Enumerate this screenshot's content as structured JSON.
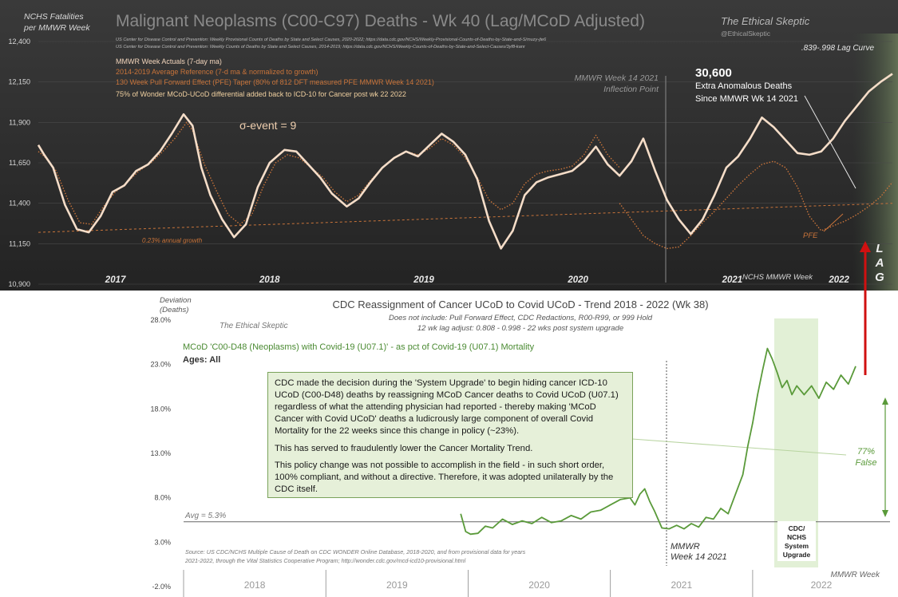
{
  "chart_data": [
    {
      "type": "line",
      "title": "Malignant Neoplasms (C00-C97) Deaths - Wk 40 (Lag/MCoD Adjusted)",
      "ylabel": "NCHS Fatalities per MMWR Week",
      "ylabel_line1": "NCHS Fatalities",
      "ylabel_line2": "per MMWR Week",
      "xlabel": "NCHS MMWR Week",
      "ylim": [
        10900,
        12400
      ],
      "yticks": [
        "12,400",
        "12,150",
        "11,900",
        "11,650",
        "11,400",
        "11,150",
        "10,900"
      ],
      "ytick_values": [
        12400,
        12150,
        11900,
        11650,
        11400,
        11150,
        10900
      ],
      "year_labels": [
        "2017",
        "2018",
        "2019",
        "2020",
        "2021",
        "2022"
      ],
      "source_lines": [
        "US Center for Disease Control and Prevention: Weekly Provisional Counts of Deaths by State and Select Causes, 2020-2022; https://data.cdc.gov/NCHS/Weekly-Provisional-Counts-of-Deaths-by-State-and-S/muzy-jte6",
        "US Center for Disease Control and Prevention: Weekly Counts of Deaths by State and Select Causes, 2014-2019; https://data.cdc.gov/NCHS/Weekly-Counts-of-Deaths-by-State-and-Select-Causes/3yf8-kanr"
      ],
      "legend": [
        {
          "text": "MMWR Week Actuals (7-day ma)",
          "color": "#f3d6bd"
        },
        {
          "text": "2014-2019 Average Reference  (7-d ma & normalized to growth)",
          "color": "#c9743a"
        },
        {
          "text": "130 Week Pull Forward Effect (PFE) Taper (80% of 812 DFT measured PFE MMWR Week 14 2021)",
          "color": "#c9743a"
        },
        {
          "text": "75% of Wonder MCoD-UCoD  differential added back to ICD-10 for Cancer post wk 22 2022",
          "color": "#f0d0a0"
        }
      ],
      "sigma_label": "σ-event = 9",
      "growth_label": "0.23% annual growth",
      "inflection_label_1": "MMWR Week 14 2021",
      "inflection_label_2": "Inflection Point",
      "excess_value": "30,600",
      "excess_line1": "Extra Anomalous Deaths",
      "excess_line2": "Since MMWR Wk 14 2021",
      "lag_curve_label": ".839-.998  Lag Curve",
      "lag_letters": [
        "L",
        "A",
        "G"
      ],
      "pfe_label": "PFE",
      "brand": "The Ethical Skeptic",
      "brand_handle": "@EthicalSkeptic",
      "series": [
        {
          "name": "MMWR Week Actuals (7-day ma)",
          "color": "#f5ddc8",
          "x": [
            0,
            2,
            5,
            9,
            13,
            17,
            21,
            25,
            29,
            33,
            37,
            41,
            45,
            49,
            52,
            55,
            58,
            62,
            66,
            70,
            74,
            78,
            83,
            87,
            91,
            95,
            99,
            104,
            108,
            112,
            116,
            120,
            124,
            128,
            132,
            136,
            140,
            144,
            148,
            152,
            156,
            160,
            164,
            168,
            172,
            176,
            180,
            184,
            188,
            192,
            196,
            200,
            204,
            208,
            212,
            216,
            220,
            224,
            228,
            232,
            236,
            240,
            244,
            248,
            252,
            256,
            260,
            264,
            268,
            272,
            276,
            280,
            284,
            288
          ],
          "values": [
            11760,
            11700,
            11620,
            11390,
            11240,
            11220,
            11320,
            11470,
            11510,
            11600,
            11640,
            11720,
            11830,
            11950,
            11880,
            11620,
            11450,
            11300,
            11190,
            11270,
            11500,
            11650,
            11730,
            11720,
            11640,
            11560,
            11460,
            11380,
            11430,
            11530,
            11620,
            11680,
            11720,
            11690,
            11760,
            11830,
            11780,
            11700,
            11550,
            11290,
            11120,
            11230,
            11450,
            11530,
            11560,
            11580,
            11600,
            11660,
            11750,
            11640,
            11570,
            11660,
            11800,
            11600,
            11420,
            11300,
            11210,
            11300,
            11450,
            11620,
            11690,
            11800,
            11930,
            11870,
            11790,
            11710,
            11700,
            11720,
            11800,
            11910,
            12000,
            12090,
            12150,
            12200
          ]
        },
        {
          "name": "2014-2019 Average Reference",
          "color": "#c9743a",
          "x": [
            0,
            2,
            6,
            10,
            14,
            18,
            22,
            26,
            30,
            34,
            38,
            42,
            46,
            50,
            52,
            56,
            60,
            64,
            68,
            72,
            76,
            80,
            84,
            88,
            92,
            96,
            100,
            104,
            108,
            112,
            116,
            120,
            124,
            128,
            132,
            136,
            140,
            144,
            148,
            152,
            156,
            160,
            164,
            168,
            172,
            176,
            180,
            184,
            188,
            192,
            196
          ],
          "values": [
            11720,
            11690,
            11600,
            11420,
            11280,
            11270,
            11380,
            11470,
            11530,
            11600,
            11650,
            11720,
            11800,
            11900,
            11850,
            11640,
            11480,
            11330,
            11270,
            11330,
            11510,
            11650,
            11700,
            11680,
            11620,
            11560,
            11470,
            11410,
            11450,
            11540,
            11620,
            11680,
            11720,
            11700,
            11740,
            11800,
            11760,
            11680,
            11560,
            11420,
            11360,
            11400,
            11520,
            11580,
            11600,
            11610,
            11630,
            11700,
            11820,
            11700,
            11620
          ]
        },
        {
          "name": "PFE",
          "color": "#c9743a",
          "x": [
            196,
            200,
            204,
            208,
            212,
            216,
            220,
            224,
            228,
            232,
            236,
            240,
            244,
            248,
            252,
            256,
            260,
            264,
            268,
            272,
            276,
            280,
            284,
            288
          ],
          "values": [
            11400,
            11300,
            11200,
            11150,
            11120,
            11130,
            11200,
            11280,
            11350,
            11430,
            11510,
            11580,
            11640,
            11660,
            11620,
            11500,
            11320,
            11230,
            11260,
            11290,
            11330,
            11380,
            11440,
            11530
          ]
        },
        {
          "name": "Growth baseline",
          "color": "#c9743a",
          "x": [
            0,
            288
          ],
          "values": [
            11220,
            11400
          ]
        }
      ]
    },
    {
      "type": "line",
      "title": "CDC Reassignment of Cancer UCoD to Covid UCoD - Trend  2018 - 2022 (Wk 38)",
      "subtitle_line1": "Does not include: Pull Forward Effect,  CDC Redactions, R00-R99, or 999 Hold",
      "subtitle_line2": "12 wk lag adjust: 0.808 - 0.998 - 22 wks post system upgrade",
      "series_label": "MCoD 'C00-D48 (Neoplasms) with Covid-19 (U07.1)' - as pct of Covid-19 (U07.1) Mortality",
      "ages_label": "Ages: All",
      "ylabel_line1": "Deviation",
      "ylabel_line2": "(Deaths)",
      "xlabel": "MMWR Week",
      "ylim": [
        -2,
        28
      ],
      "yticks": [
        "28.0%",
        "23.0%",
        "18.0%",
        "13.0%",
        "8.0%",
        "3.0%",
        "-2.0%"
      ],
      "ytick_values": [
        28,
        23,
        18,
        13,
        8,
        3,
        -2
      ],
      "year_labels": [
        "2018",
        "2019",
        "2020",
        "2021",
        "2022"
      ],
      "avg_label": "Avg = 5.3%",
      "avg_value": 5.3,
      "mmwr_label_1": "MMWR",
      "mmwr_label_2": "Week 14 2021",
      "upgrade_label": [
        "CDC/",
        "NCHS",
        "System",
        "Upgrade"
      ],
      "false_pct": "77%",
      "false_label": "False",
      "brand": "The Ethical Skeptic",
      "source_line1": "Source: US CDC/NCHS Multiple Cause of Death on CDC WONDER Online Database, 2018-2020, and from provisional data for years",
      "source_line2": "2021-2022, through the Vital Statistics Cooperative Program; http://wonder.cdc.gov/mcd-icd10-provisional.html",
      "note_paragraphs": [
        "CDC made the decision during the 'System Upgrade' to begin hiding cancer ICD-10 UCoD (C00-D48) deaths by reassigning MCoD Cancer deaths to Covid UCoD (U07.1) regardless of what the attending physician had reported - thereby making 'MCoD Cancer with Covid UCoD' deaths a ludicrously large component of overall Covid Mortality for the 22  weeks since this change in policy (~23%).",
        "This has served to fraudulently lower the Cancer Mortality Trend.",
        "This policy change was not possible to accomplish in the field - in such short order, 100% compliant, and without a directive. Therefore, it was adopted unilaterally by the CDC itself."
      ],
      "series": [
        {
          "name": "MCoD C00-D48 with U07.1 pct of U07.1",
          "color": "#5a9a3a",
          "x": [
            113,
            115,
            117,
            120,
            123,
            126,
            130,
            134,
            138,
            142,
            146,
            150,
            154,
            158,
            162,
            166,
            170,
            174,
            178,
            182,
            184,
            186,
            188,
            190,
            192,
            195,
            198,
            201,
            204,
            207,
            210,
            213,
            216,
            219,
            222,
            225,
            228,
            230,
            232,
            234,
            236,
            238,
            240,
            242,
            244,
            246,
            248,
            250,
            253,
            256,
            259,
            262,
            265,
            268,
            271,
            274
          ],
          "values": [
            6.2,
            4.2,
            3.9,
            4.0,
            4.8,
            4.6,
            5.6,
            5.0,
            5.4,
            5.1,
            5.8,
            5.2,
            5.4,
            6.0,
            5.6,
            6.4,
            6.6,
            7.2,
            7.8,
            8.0,
            7.2,
            8.4,
            9.0,
            7.6,
            6.5,
            4.6,
            4.5,
            4.9,
            4.5,
            5.1,
            4.7,
            5.8,
            5.6,
            6.8,
            6.2,
            8.4,
            10.6,
            13.8,
            16.4,
            19.6,
            22.3,
            24.8,
            23.6,
            22.1,
            20.4,
            21.2,
            19.6,
            20.6,
            19.6,
            20.6,
            19.2,
            21.0,
            20.2,
            21.8,
            20.8,
            22.8
          ]
        }
      ]
    }
  ]
}
